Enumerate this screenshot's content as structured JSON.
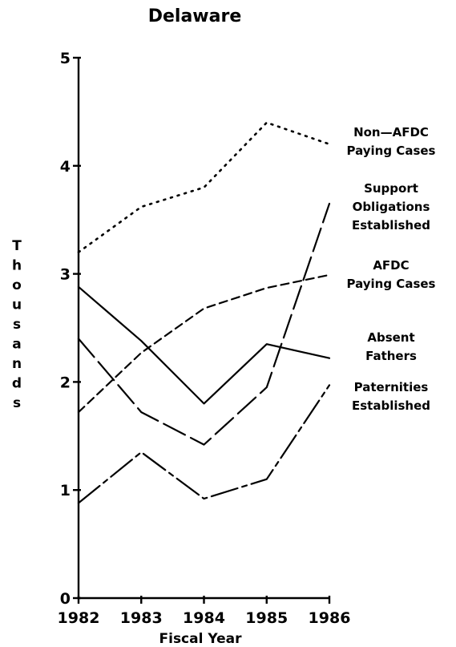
{
  "chart_data": {
    "type": "line",
    "title": "Delaware",
    "xlabel": "Fiscal Year",
    "ylabel": "Thousands",
    "x": [
      1982,
      1983,
      1984,
      1985,
      1986
    ],
    "x_tick_labels": [
      "1982",
      "1983",
      "1984",
      "1985",
      "1986"
    ],
    "y_ticks": [
      0,
      1,
      2,
      3,
      4,
      5
    ],
    "y_tick_labels": [
      "0",
      "1",
      "2",
      "3",
      "4",
      "5"
    ],
    "ylim": [
      0,
      5
    ],
    "grid": false,
    "series": [
      {
        "name": "Non-AFDC Paying Cases",
        "label_lines": [
          "Non—AFDC",
          "Paying Cases"
        ],
        "style": "dotted",
        "values": [
          3.2,
          3.62,
          3.8,
          4.4,
          4.2
        ]
      },
      {
        "name": "Support Obligations Established",
        "label_lines": [
          "Support",
          "Obligations",
          "Established"
        ],
        "style": "longdash",
        "values": [
          2.4,
          1.72,
          1.42,
          1.95,
          3.65
        ]
      },
      {
        "name": "AFDC Paying Cases",
        "label_lines": [
          "AFDC",
          "Paying Cases"
        ],
        "style": "dashed",
        "values": [
          1.72,
          2.27,
          2.68,
          2.87,
          2.99
        ]
      },
      {
        "name": "Absent Fathers",
        "label_lines": [
          "Absent",
          "Fathers"
        ],
        "style": "solid",
        "values": [
          2.88,
          2.38,
          1.8,
          2.35,
          2.22
        ]
      },
      {
        "name": "Paternities Established",
        "label_lines": [
          "Paternities",
          "Established"
        ],
        "style": "dashdot",
        "values": [
          0.88,
          1.35,
          0.92,
          1.1,
          1.97
        ]
      }
    ]
  }
}
